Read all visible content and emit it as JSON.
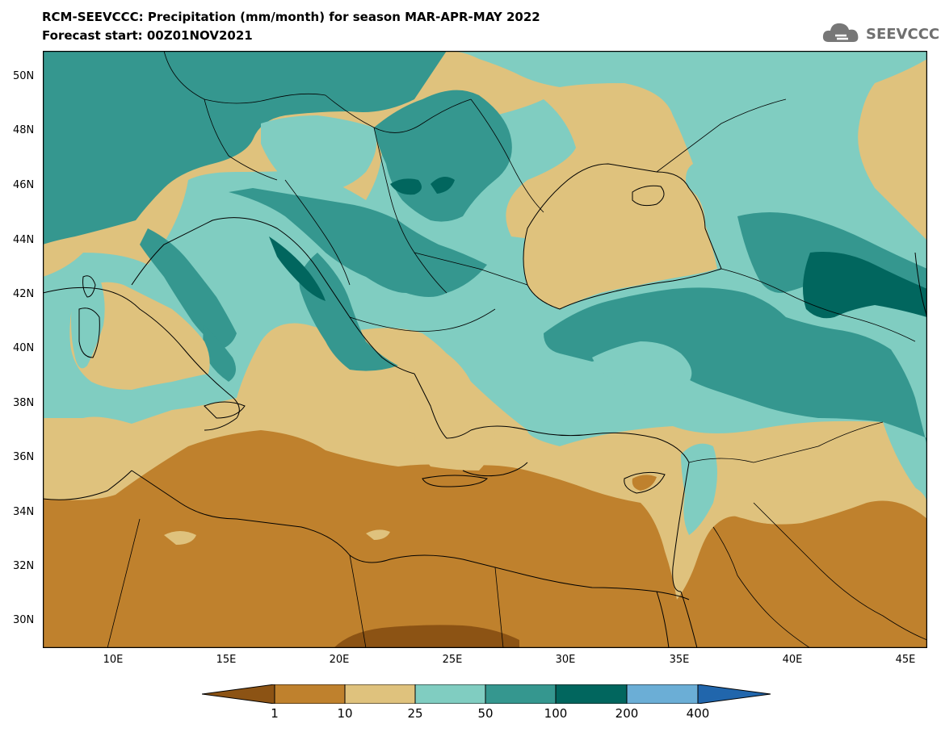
{
  "title": {
    "line1": "RCM-SEEVCCC: Precipitation (mm/month) for season MAR-APR-MAY 2022",
    "line2": "Forecast start: 00Z01NOV2021"
  },
  "logo": {
    "text": "SEEVCCC",
    "icon": "cloud-icon"
  },
  "map": {
    "region": "South-East Europe, Mediterranean and Black Sea",
    "variable": "Precipitation",
    "units": "mm/month",
    "lon_range": [
      7,
      46
    ],
    "lat_range": [
      29,
      51
    ],
    "lat_ticks": [
      "50N",
      "48N",
      "46N",
      "44N",
      "42N",
      "40N",
      "38N",
      "36N",
      "34N",
      "32N",
      "30N"
    ],
    "lon_ticks": [
      "10E",
      "15E",
      "20E",
      "25E",
      "30E",
      "35E",
      "40E",
      "45E"
    ],
    "dominant_classes": {
      "north_africa": "1-10",
      "mediterranean_sea": "10-25",
      "black_sea": "10-25",
      "alps_and_dinaric": "50-100",
      "turkey_caucasus": "50-200",
      "central_europe": "25-100"
    }
  },
  "legend": {
    "labels": [
      "1",
      "10",
      "25",
      "50",
      "100",
      "200",
      "400"
    ],
    "colors": {
      "below_1": "#8c5314",
      "c1_10": "#bf812d",
      "c10_25": "#dfc27d",
      "c25_50": "#80cdc1",
      "c50_100": "#35978f",
      "c100_200": "#01665e",
      "c200_400": "#6baed6",
      "above_400": "#2166ac"
    }
  }
}
